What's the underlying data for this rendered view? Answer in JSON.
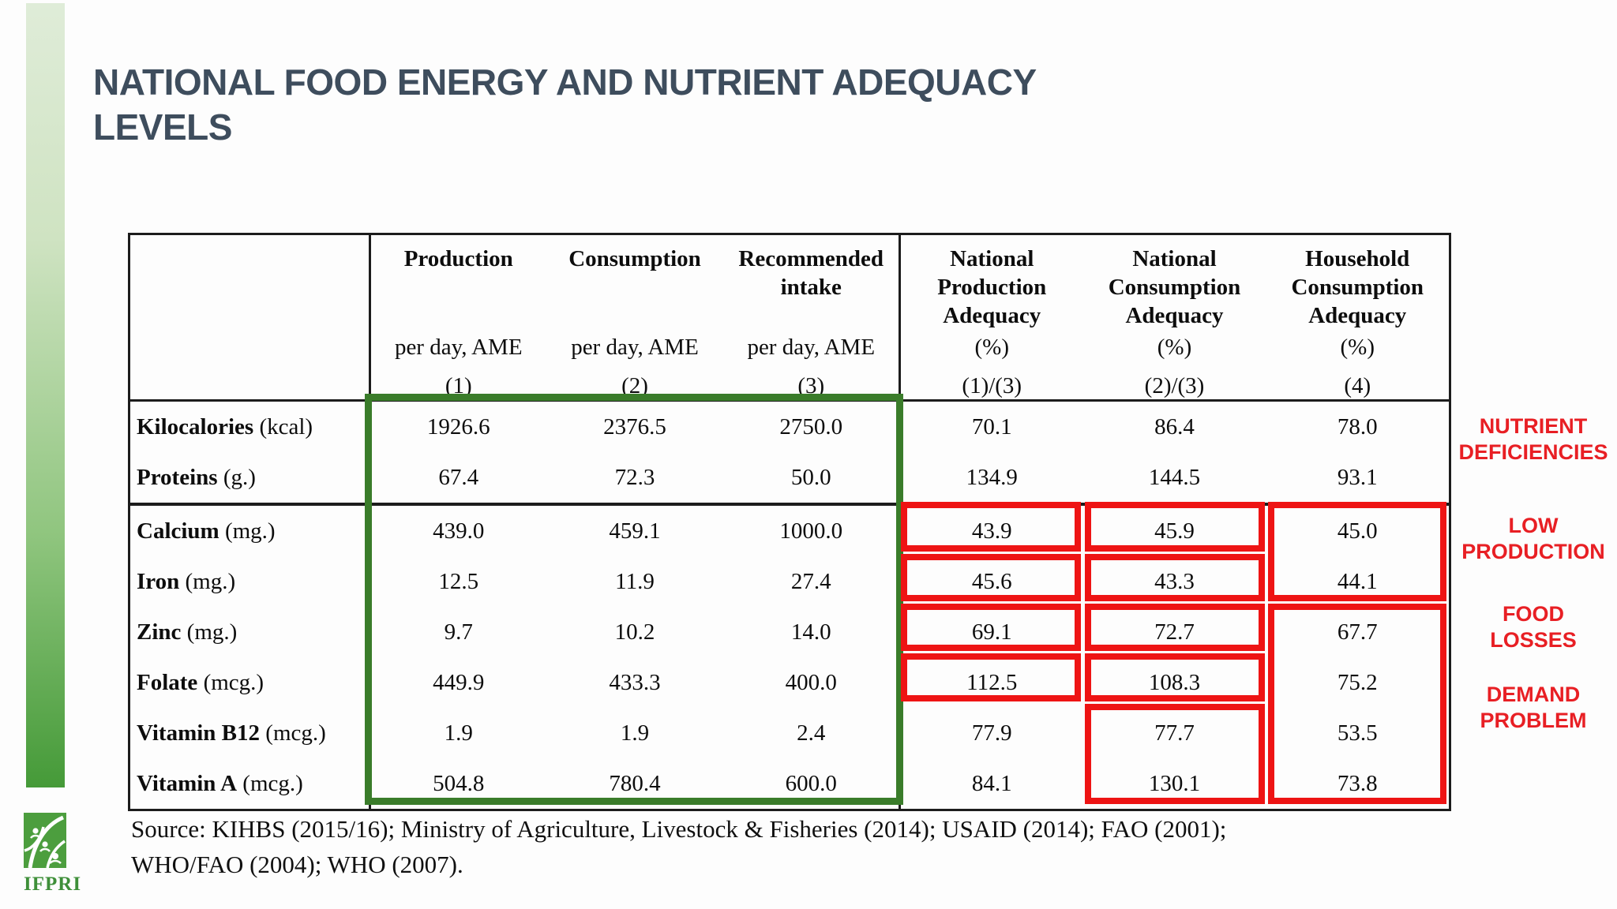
{
  "slide": {
    "title_line1": "NATIONAL FOOD ENERGY AND NUTRIENT ADEQUACY",
    "title_line2": "LEVELS",
    "source_line1": "Source: KIHBS (2015/16); Ministry of Agriculture, Livestock & Fisheries (2014); USAID (2014); FAO (2001);",
    "source_line2": "WHO/FAO (2004); WHO (2007).",
    "logo_text": "IFPRI"
  },
  "colors": {
    "title_text": "#3e4d5d",
    "highlight_green_border": "#3a7c2a",
    "highlight_red_border": "#ee1414",
    "annotation_red": "#e81f24",
    "logo_green": "#4c9e3e"
  },
  "annotations": [
    {
      "line1": "NUTRIENT",
      "line2": "DEFICIENCIES"
    },
    {
      "line1": "LOW",
      "line2": "PRODUCTION"
    },
    {
      "line1": "FOOD",
      "line2": "LOSSES"
    },
    {
      "line1": "DEMAND",
      "line2": "PROBLEM"
    }
  ],
  "table": {
    "header": {
      "cols": [
        {
          "title": "Production",
          "sub": "per day, AME",
          "num": "(1)"
        },
        {
          "title": "Consumption",
          "sub": "per day, AME",
          "num": "(2)"
        },
        {
          "title": "Recommended\nintake",
          "sub": "per day, AME",
          "num": "(3)"
        },
        {
          "title": "National\nProduction\nAdequacy",
          "sub": "(%)",
          "num": "(1)/(3)"
        },
        {
          "title": "National\nConsumption\nAdequacy",
          "sub": "(%)",
          "num": "(2)/(3)"
        },
        {
          "title": "Household\nConsumption\nAdequacy",
          "sub": "(%)",
          "num": "(4)"
        }
      ]
    },
    "rows": [
      {
        "label": "Kilocalories",
        "unit": "(kcal)",
        "values": [
          "1926.6",
          "2376.5",
          "2750.0",
          "70.1",
          "86.4",
          "78.0"
        ]
      },
      {
        "label": "Proteins",
        "unit": "(g.)",
        "values": [
          "67.4",
          "72.3",
          "50.0",
          "134.9",
          "144.5",
          "93.1"
        ]
      },
      {
        "label": "Calcium",
        "unit": "(mg.)",
        "values": [
          "439.0",
          "459.1",
          "1000.0",
          "43.9",
          "45.9",
          "45.0"
        ]
      },
      {
        "label": "Iron",
        "unit": "(mg.)",
        "values": [
          "12.5",
          "11.9",
          "27.4",
          "45.6",
          "43.3",
          "44.1"
        ]
      },
      {
        "label": "Zinc",
        "unit": "(mg.)",
        "values": [
          "9.7",
          "10.2",
          "14.0",
          "69.1",
          "72.7",
          "67.7"
        ]
      },
      {
        "label": "Folate",
        "unit": "(mcg.)",
        "values": [
          "449.9",
          "433.3",
          "400.0",
          "112.5",
          "108.3",
          "75.2"
        ]
      },
      {
        "label": "Vitamin B12",
        "unit": "(mcg.)",
        "values": [
          "1.9",
          "1.9",
          "2.4",
          "77.9",
          "77.7",
          "53.5"
        ]
      },
      {
        "label": "Vitamin A",
        "unit": "(mcg.)",
        "values": [
          "504.8",
          "780.4",
          "600.0",
          "84.1",
          "130.1",
          "73.8"
        ]
      }
    ]
  },
  "highlights": {
    "green_box_columns": "Production, Consumption, Recommended intake (all nutrient rows)",
    "red_boxes": [
      "National Production Adequacy: Calcium, Iron, Zinc, Folate",
      "National Consumption Adequacy: Calcium, Iron, Zinc, Folate, Vitamin B12+Vitamin A",
      "Household Consumption Adequacy: Calcium+Iron, Zinc through Vitamin A"
    ]
  }
}
